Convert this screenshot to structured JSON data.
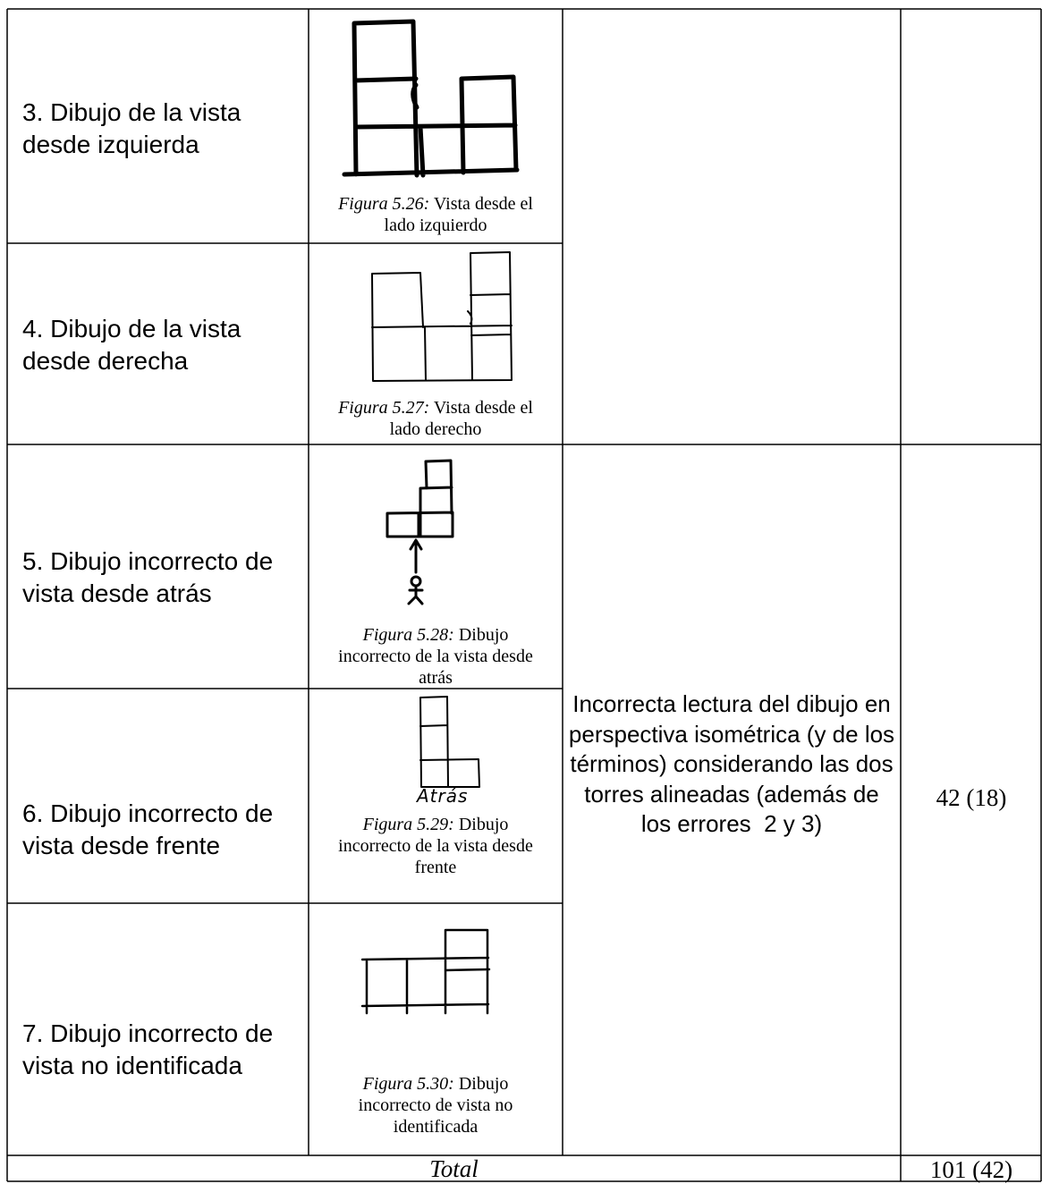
{
  "table": {
    "rows": [
      {
        "label": "3. Dibujo de la vista desde izquierda",
        "figure": {
          "number": "Figura 5.26:",
          "caption": "Vista desde el lado izquierdo"
        }
      },
      {
        "label": "4. Dibujo de la vista desde derecha",
        "figure": {
          "number": "Figura 5.27:",
          "caption": "Vista desde el lado derecho"
        }
      },
      {
        "label": "5. Dibujo incorrecto de vista desde atrás",
        "figure": {
          "number": "Figura 5.28:",
          "caption": "Dibujo incorrecto de la vista desde atrás"
        }
      },
      {
        "label": "6. Dibujo incorrecto de vista desde frente",
        "figure": {
          "number": "Figura 5.29:",
          "caption": "Dibujo incorrecto de la vista desde frente",
          "sketch_text": "Atrás"
        }
      },
      {
        "label": "7. Dibujo incorrecto de vista no identificada",
        "figure": {
          "number": "Figura 5.30:",
          "caption": "Dibujo incorrecto de vista no identificada"
        }
      }
    ],
    "merged_description": "Incorrecta lectura del dibujo en perspectiva isométrica (y de los términos) considerando las dos torres alineadas (además de los errores  2 y 3)",
    "merged_count": "42 (18)",
    "total_label": "Total",
    "total_value": "101 (42)"
  }
}
